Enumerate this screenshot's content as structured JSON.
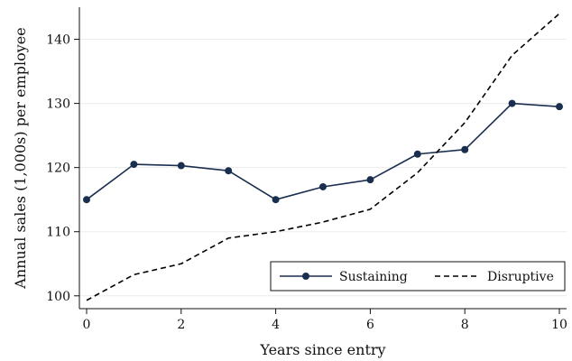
{
  "chart_data": {
    "type": "line",
    "title": "",
    "xlabel": "Years since entry",
    "ylabel": "Annual sales (1,000s) per employee",
    "xlim": [
      0,
      10
    ],
    "ylim": [
      98,
      145
    ],
    "xticks": [
      0,
      2,
      4,
      6,
      8,
      10
    ],
    "yticks": [
      100,
      110,
      120,
      130,
      140
    ],
    "grid": true,
    "legend_position": "bottom-right",
    "series": [
      {
        "name": "Sustaining",
        "style": "solid-with-markers",
        "color": "#1a2f4f",
        "x": [
          0,
          1,
          2,
          3,
          4,
          5,
          6,
          7,
          8,
          9,
          10
        ],
        "y": [
          115.0,
          120.5,
          120.3,
          119.5,
          115.0,
          117.0,
          118.1,
          122.1,
          122.8,
          130.0,
          129.5
        ]
      },
      {
        "name": "Disruptive",
        "style": "dashed",
        "color": "#000000",
        "x": [
          0,
          1,
          2,
          3,
          4,
          5,
          6,
          7,
          8,
          9,
          10
        ],
        "y": [
          99.3,
          103.3,
          105.0,
          109.0,
          110.0,
          111.5,
          113.5,
          119.2,
          127.0,
          137.5,
          144.0
        ]
      }
    ]
  }
}
